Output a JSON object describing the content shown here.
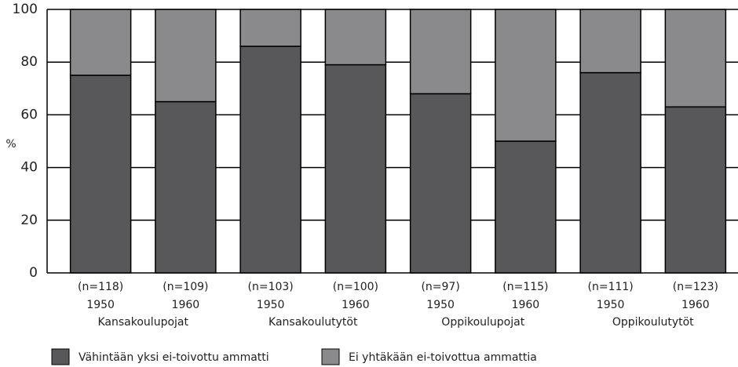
{
  "chart_data": {
    "type": "stacked_bar",
    "ylabel": "%",
    "categories": [
      "(n=118)",
      "(n=109)",
      "(n=103)",
      "(n=100)",
      "(n=97)",
      "(n=115)",
      "(n=111)",
      "(n=123)"
    ],
    "years": [
      "1950",
      "1960",
      "1950",
      "1960",
      "1950",
      "1960",
      "1950",
      "1960"
    ],
    "groups": [
      "Kansakoulupojat",
      "Kansakoulutytöt",
      "Oppikoulupojat",
      "Oppikoulutytöt"
    ],
    "series": [
      {
        "name": "Vähintään yksi ei-toivottu ammatti",
        "color": "#58585a",
        "values": [
          75,
          65,
          86,
          79,
          68,
          50,
          76,
          63
        ]
      },
      {
        "name": "Ei yhtäkään ei-toivottua ammattia",
        "color": "#8a8a8c",
        "values": [
          25,
          35,
          14,
          21,
          32,
          50,
          24,
          37
        ]
      }
    ],
    "ylim": [
      0,
      100
    ],
    "yticks": [
      0,
      20,
      40,
      60,
      80,
      100
    ],
    "grid": true,
    "legend": "bottom"
  }
}
